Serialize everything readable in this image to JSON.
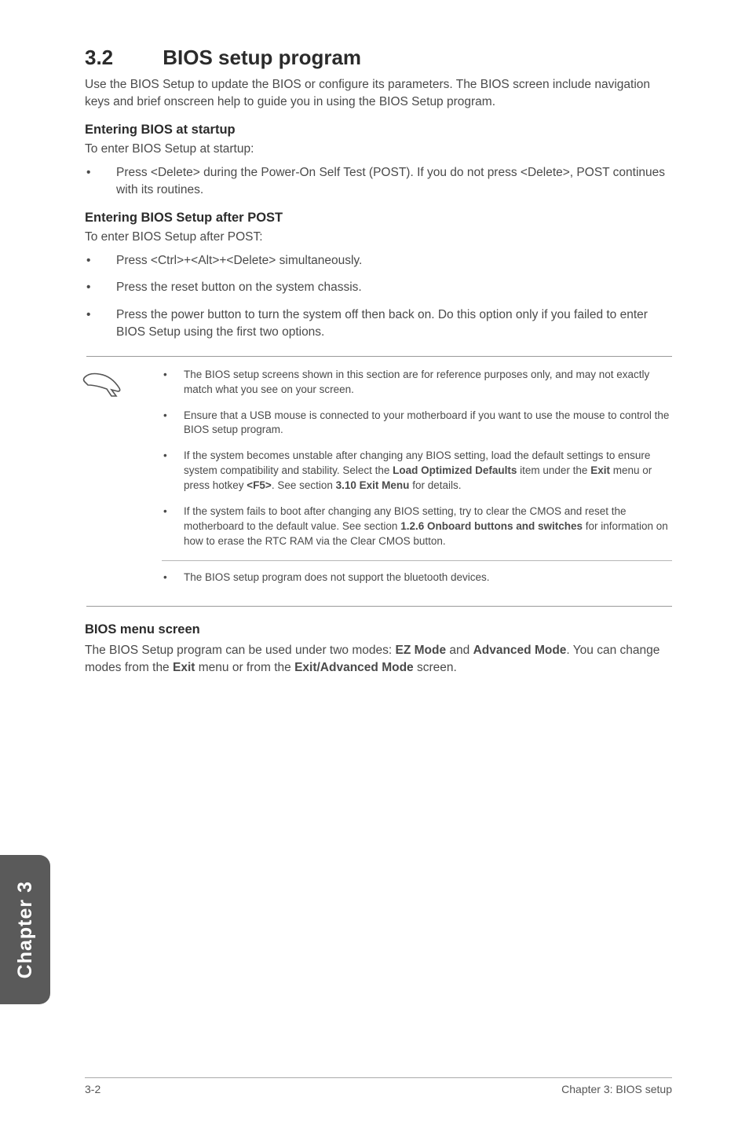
{
  "colors": {
    "text": "#4a4a4a",
    "heading": "#2b2b2b",
    "tab_bg": "#5a5a5a",
    "tab_text": "#ffffff",
    "rule": "#9a9a9a"
  },
  "typography": {
    "heading_fontsize": 26,
    "subheading_fontsize": 16.5,
    "body_fontsize": 15.5,
    "note_fontsize": 13.5,
    "tab_fontsize": 25,
    "footer_fontsize": 14
  },
  "section_number": "3.2",
  "section_title": "BIOS setup program",
  "intro": "Use the BIOS Setup to update the BIOS or configure its parameters. The BIOS screen include navigation keys and brief onscreen help to guide you in using the BIOS Setup program.",
  "startup": {
    "heading": "Entering BIOS at startup",
    "intro": "To enter BIOS Setup at startup:",
    "bullets": [
      "Press <Delete> during the Power-On Self Test (POST). If you do not press <Delete>, POST continues with its routines."
    ]
  },
  "after_post": {
    "heading": "Entering BIOS Setup after POST",
    "intro": "To enter BIOS Setup after POST:",
    "bullets": [
      "Press <Ctrl>+<Alt>+<Delete> simultaneously.",
      "Press the reset button on the system chassis.",
      "Press the power button to turn the system off then back on. Do this option only if you failed to enter BIOS Setup using the first two options."
    ]
  },
  "notes": {
    "group1": [
      {
        "lead": "The BIOS setup screens shown in this section are for reference purposes only, and",
        "rest": " may not exactly match what you see on your screen."
      },
      {
        "lead": "Ensure that a USB mouse is connected to your motherboard if you want to use the",
        "rest": " mouse to control the BIOS setup program."
      },
      {
        "lead": "If the system becomes unstable after changing any BIOS setting, load the default",
        "rest_html": " settings to ensure system compatibility and stability. Select the <b>Load Optimized Defaults</b> item under the <b>Exit</b> menu or press hotkey <b>&lt;F5&gt;</b>. See section <b>3.10 Exit Menu</b> for details."
      },
      {
        "lead": "If the system fails to boot after changing any BIOS setting, try to clear the CMOS and",
        "rest_html": " reset the motherboard to the default value. See section <b>1.2.6 Onboard buttons and switches</b> for information on how to erase the RTC RAM via the Clear CMOS button."
      }
    ],
    "group2": [
      {
        "lead": "The BIOS setup program does not support the bluetooth devices.",
        "rest": ""
      }
    ]
  },
  "menu_screen": {
    "heading": "BIOS menu screen",
    "body_html": "The BIOS Setup program can be used under two modes: <b>EZ Mode</b> and <b>Advanced Mode</b>. You can change modes from the <b>Exit</b> menu or from the <b>Exit/Advanced Mode</b> screen."
  },
  "tab_label": "Chapter 3",
  "footer": {
    "left": "3-2",
    "right": "Chapter 3: BIOS setup"
  }
}
